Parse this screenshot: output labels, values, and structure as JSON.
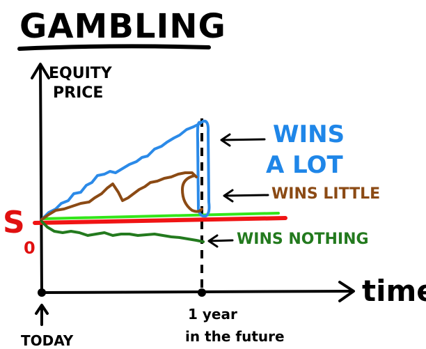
{
  "title": "GAMBLING",
  "y_axis_label": [
    "EQUITY",
    "PRICE"
  ],
  "x_axis_label": "time",
  "start_label": {
    "symbol": "S",
    "subscript": "0"
  },
  "outcomes": [
    {
      "label": [
        "WINS",
        "A LOT"
      ]
    },
    {
      "label": [
        "WINS LITTLE"
      ]
    },
    {
      "label": [
        "WINS NOTHING"
      ]
    }
  ],
  "markers": [
    {
      "label": [
        "TODAY"
      ]
    },
    {
      "label": [
        "1 year",
        "in the future"
      ]
    }
  ]
}
